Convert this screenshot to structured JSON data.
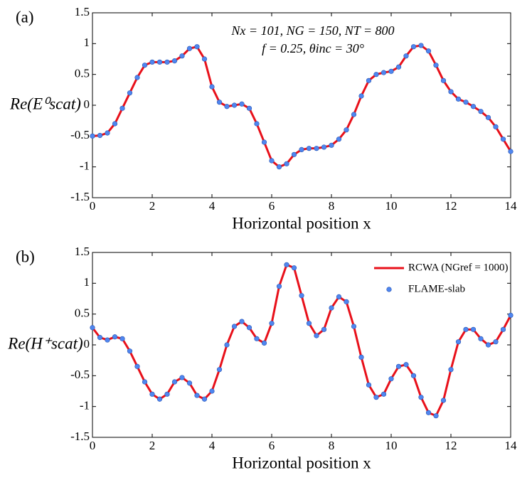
{
  "chart_data": [
    {
      "type": "line",
      "panel_label": "(a)",
      "y_label": "Re(E⁰scat)",
      "x_label": "Horizontal position x",
      "annotations": [
        "Nx = 101, NG = 150, NT = 800",
        "f = 0.25, θinc = 30°"
      ],
      "x": [
        0,
        0.25,
        0.5,
        0.75,
        1,
        1.25,
        1.5,
        1.75,
        2,
        2.25,
        2.5,
        2.75,
        3,
        3.25,
        3.5,
        3.75,
        4,
        4.25,
        4.5,
        4.75,
        5,
        5.25,
        5.5,
        5.75,
        6,
        6.25,
        6.5,
        6.75,
        7,
        7.25,
        7.5,
        7.75,
        8,
        8.25,
        8.5,
        8.75,
        9,
        9.25,
        9.5,
        9.75,
        10,
        10.25,
        10.5,
        10.75,
        11,
        11.25,
        11.5,
        11.75,
        12,
        12.25,
        12.5,
        12.75,
        13,
        13.25,
        13.5,
        13.75,
        14
      ],
      "series": [
        {
          "style": "line",
          "color": "#e8101a",
          "values": [
            -0.5,
            -0.49,
            -0.45,
            -0.3,
            -0.05,
            0.2,
            0.45,
            0.65,
            0.7,
            0.7,
            0.7,
            0.72,
            0.8,
            0.92,
            0.95,
            0.75,
            0.3,
            0.05,
            -0.02,
            0,
            0.02,
            -0.05,
            -0.3,
            -0.6,
            -0.9,
            -1,
            -0.95,
            -0.8,
            -0.72,
            -0.7,
            -0.7,
            -0.68,
            -0.65,
            -0.55,
            -0.4,
            -0.15,
            0.15,
            0.4,
            0.5,
            0.53,
            0.55,
            0.62,
            0.8,
            0.95,
            0.97,
            0.88,
            0.65,
            0.4,
            0.22,
            0.1,
            0.05,
            -0.02,
            -0.1,
            -0.2,
            -0.35,
            -0.55,
            -0.75
          ]
        },
        {
          "style": "marker",
          "color": "#4f86f0",
          "values": [
            -0.5,
            -0.49,
            -0.45,
            -0.3,
            -0.05,
            0.2,
            0.45,
            0.65,
            0.7,
            0.7,
            0.7,
            0.72,
            0.8,
            0.92,
            0.95,
            0.75,
            0.3,
            0.05,
            -0.02,
            0,
            0.02,
            -0.05,
            -0.3,
            -0.6,
            -0.9,
            -1,
            -0.95,
            -0.8,
            -0.72,
            -0.7,
            -0.7,
            -0.68,
            -0.65,
            -0.55,
            -0.4,
            -0.15,
            0.15,
            0.4,
            0.5,
            0.53,
            0.55,
            0.62,
            0.8,
            0.95,
            0.97,
            0.88,
            0.65,
            0.4,
            0.22,
            0.1,
            0.05,
            -0.02,
            -0.1,
            -0.2,
            -0.35,
            -0.55,
            -0.75
          ]
        }
      ],
      "xlim": [
        0,
        14
      ],
      "xticks": [
        0,
        2,
        4,
        6,
        8,
        10,
        12,
        14
      ],
      "ylim": [
        -1.5,
        1.5
      ],
      "yticks": [
        -1.5,
        -1,
        -0.5,
        0,
        0.5,
        1,
        1.5
      ]
    },
    {
      "type": "line",
      "panel_label": "(b)",
      "y_label": "Re(H⁺scat)",
      "x_label": "Horizontal position x",
      "legend": "upper right",
      "x": [
        0,
        0.25,
        0.5,
        0.75,
        1,
        1.25,
        1.5,
        1.75,
        2,
        2.25,
        2.5,
        2.75,
        3,
        3.25,
        3.5,
        3.75,
        4,
        4.25,
        4.5,
        4.75,
        5,
        5.25,
        5.5,
        5.75,
        6,
        6.25,
        6.5,
        6.75,
        7,
        7.25,
        7.5,
        7.75,
        8,
        8.25,
        8.5,
        8.75,
        9,
        9.25,
        9.5,
        9.75,
        10,
        10.25,
        10.5,
        10.75,
        11,
        11.25,
        11.5,
        11.75,
        12,
        12.25,
        12.5,
        12.75,
        13,
        13.25,
        13.5,
        13.75,
        14
      ],
      "series": [
        {
          "name": "RCWA (NGref = 1000)",
          "style": "line",
          "color": "#e8101a",
          "values": [
            0.28,
            0.12,
            0.08,
            0.13,
            0.1,
            -0.1,
            -0.35,
            -0.6,
            -0.8,
            -0.88,
            -0.8,
            -0.6,
            -0.53,
            -0.62,
            -0.82,
            -0.88,
            -0.75,
            -0.4,
            0,
            0.3,
            0.38,
            0.28,
            0.1,
            0.03,
            0.35,
            0.95,
            1.3,
            1.25,
            0.8,
            0.35,
            0.15,
            0.25,
            0.6,
            0.78,
            0.7,
            0.3,
            -0.2,
            -0.65,
            -0.85,
            -0.8,
            -0.55,
            -0.35,
            -0.32,
            -0.5,
            -0.85,
            -1.1,
            -1.15,
            -0.9,
            -0.4,
            0.05,
            0.25,
            0.25,
            0.1,
            0,
            0.05,
            0.25,
            0.48
          ]
        },
        {
          "name": "FLAME-slab",
          "style": "marker",
          "color": "#4f86f0",
          "values": [
            0.28,
            0.12,
            0.08,
            0.13,
            0.1,
            -0.1,
            -0.35,
            -0.6,
            -0.8,
            -0.88,
            -0.8,
            -0.6,
            -0.53,
            -0.62,
            -0.82,
            -0.88,
            -0.75,
            -0.4,
            0,
            0.3,
            0.38,
            0.28,
            0.1,
            0.03,
            0.35,
            0.95,
            1.3,
            1.25,
            0.8,
            0.35,
            0.15,
            0.25,
            0.6,
            0.78,
            0.7,
            0.3,
            -0.2,
            -0.65,
            -0.85,
            -0.8,
            -0.55,
            -0.35,
            -0.32,
            -0.5,
            -0.85,
            -1.1,
            -1.15,
            -0.9,
            -0.4,
            0.05,
            0.25,
            0.25,
            0.1,
            0,
            0.05,
            0.25,
            0.48
          ]
        }
      ],
      "xlim": [
        0,
        14
      ],
      "xticks": [
        0,
        2,
        4,
        6,
        8,
        10,
        12,
        14
      ],
      "ylim": [
        -1.5,
        1.5
      ],
      "yticks": [
        -1.5,
        -1,
        -0.5,
        0,
        0.5,
        1,
        1.5
      ]
    }
  ]
}
